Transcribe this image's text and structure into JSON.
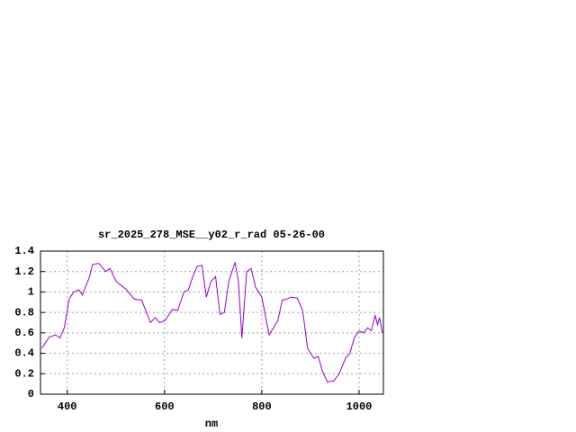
{
  "chart_data": {
    "type": "line",
    "title": "sr_2025_278_MSE__y02_r_rad 05-26-00",
    "xlabel": "nm",
    "x": [
      348,
      363,
      376,
      385,
      394,
      404,
      413,
      424,
      431,
      446,
      452,
      465,
      479,
      488,
      501,
      520,
      538,
      553,
      571,
      581,
      590,
      601,
      616,
      627,
      640,
      649,
      658,
      667,
      677,
      686,
      695,
      705,
      714,
      723,
      732,
      745,
      752,
      759,
      769,
      778,
      787,
      800,
      815,
      824,
      833,
      842,
      851,
      860,
      873,
      884,
      894,
      907,
      916,
      925,
      935,
      948,
      959,
      972,
      981,
      990,
      1000,
      1009,
      1018,
      1025,
      1033,
      1038,
      1042,
      1048
    ],
    "series": [
      {
        "color": "#9400d3",
        "values": [
          0.45,
          0.56,
          0.58,
          0.55,
          0.65,
          0.93,
          1.0,
          1.02,
          0.97,
          1.15,
          1.27,
          1.28,
          1.2,
          1.23,
          1.1,
          1.03,
          0.93,
          0.92,
          0.7,
          0.75,
          0.7,
          0.72,
          0.83,
          0.82,
          1.0,
          1.02,
          1.15,
          1.25,
          1.26,
          0.95,
          1.1,
          1.15,
          0.78,
          0.8,
          1.1,
          1.29,
          1.1,
          0.55,
          1.2,
          1.23,
          1.05,
          0.95,
          0.58,
          0.65,
          0.72,
          0.92,
          0.93,
          0.95,
          0.94,
          0.82,
          0.45,
          0.35,
          0.37,
          0.22,
          0.12,
          0.13,
          0.2,
          0.35,
          0.4,
          0.55,
          0.62,
          0.6,
          0.65,
          0.62,
          0.77,
          0.68,
          0.75,
          0.6
        ]
      }
    ],
    "xlim": [
      345,
      1050
    ],
    "ylim": [
      0,
      1.4
    ],
    "xticks": [
      400,
      600,
      800,
      1000
    ],
    "yticks": [
      0,
      0.2,
      0.4,
      0.6,
      0.8,
      1,
      1.2,
      1.4
    ],
    "grid": true
  }
}
